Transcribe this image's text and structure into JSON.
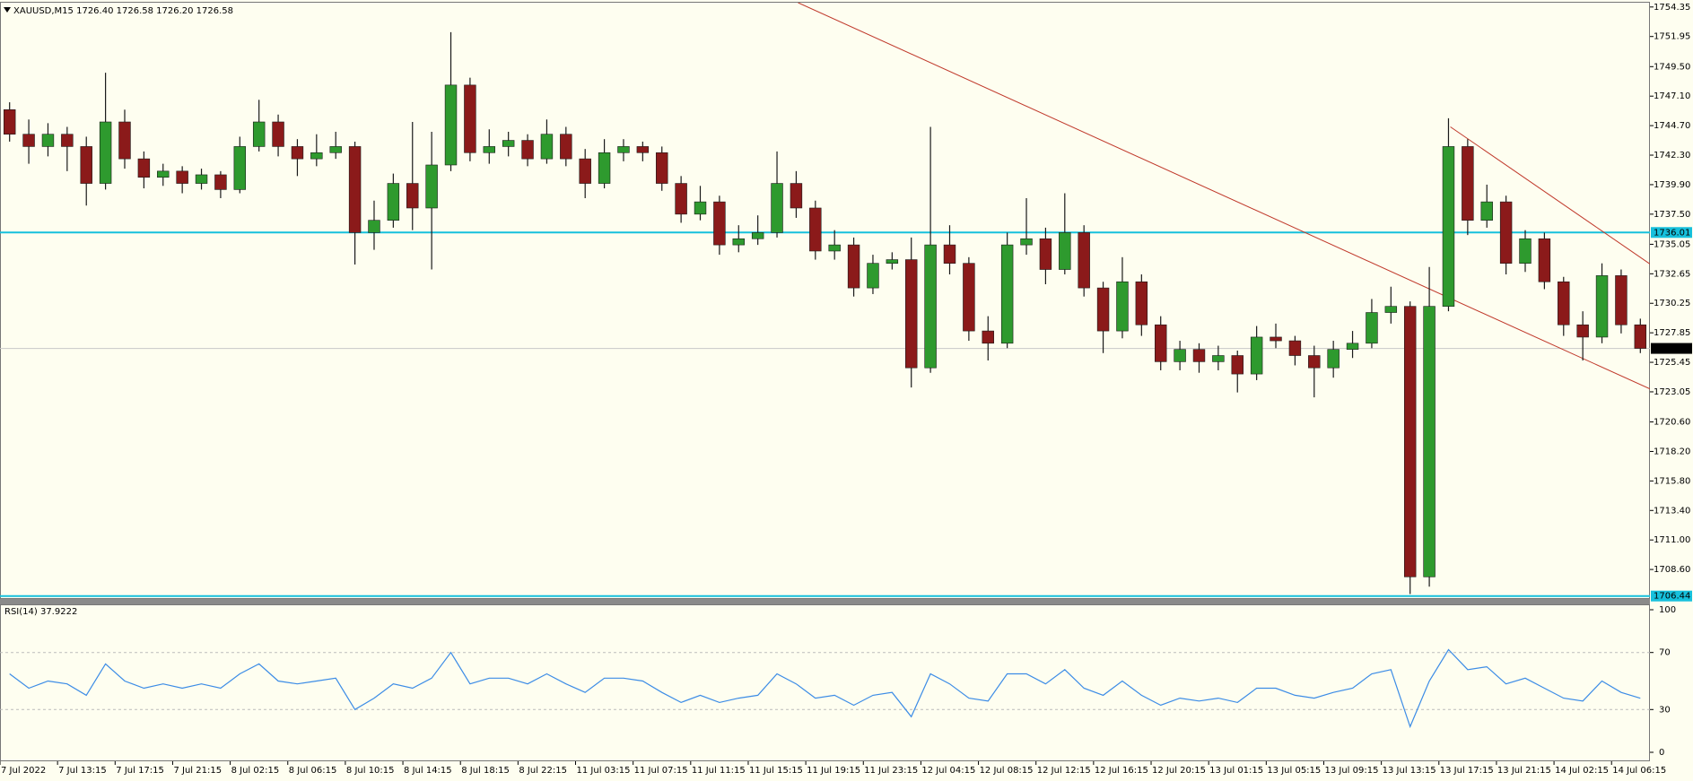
{
  "chart_data": [
    {
      "type": "candlestick",
      "title": "XAUUSD,M15  1726.40 1726.58 1726.20 1726.58",
      "up_color": "#2e9a2e",
      "down_color": "#8b1a1a",
      "wick_color": "#1a1a1a",
      "xlim": [
        0,
        86
      ],
      "ylim": [
        1706.2,
        1754.7
      ],
      "open": [
        1746.0,
        1744.0,
        1743.0,
        1744.0,
        1743.0,
        1740.0,
        1745.0,
        1742.0,
        1740.5,
        1741.0,
        1740.0,
        1740.7,
        1739.5,
        1743.0,
        1745.0,
        1743.0,
        1742.0,
        1742.5,
        1743.0,
        1736.0,
        1737.0,
        1740.0,
        1738.0,
        1741.5,
        1748.0,
        1742.5,
        1743.0,
        1743.5,
        1742.0,
        1744.0,
        1742.0,
        1740.0,
        1742.5,
        1743.0,
        1742.5,
        1740.0,
        1737.5,
        1738.5,
        1735.0,
        1735.5,
        1736.0,
        1740.0,
        1738.0,
        1734.5,
        1735.0,
        1731.5,
        1733.5,
        1733.8,
        1725.0,
        1735.0,
        1733.5,
        1728.0,
        1727.0,
        1735.0,
        1735.5,
        1733.0,
        1736.0,
        1731.5,
        1728.0,
        1732.0,
        1728.5,
        1725.5,
        1726.5,
        1725.5,
        1726.0,
        1724.5,
        1727.5,
        1727.2,
        1726.0,
        1725.0,
        1726.5,
        1727.0,
        1729.5,
        1730.0,
        1708.0,
        1730.0,
        1743.0,
        1737.0,
        1738.5,
        1733.5,
        1735.5,
        1732.0,
        1728.5,
        1727.5,
        1732.5,
        1728.5
      ],
      "high": [
        1746.6,
        1745.2,
        1744.9,
        1744.6,
        1743.8,
        1749.0,
        1746.0,
        1742.6,
        1741.6,
        1741.4,
        1741.2,
        1741.0,
        1743.8,
        1746.8,
        1745.6,
        1743.6,
        1744.0,
        1744.2,
        1743.4,
        1738.6,
        1740.8,
        1745.0,
        1744.2,
        1752.3,
        1748.6,
        1744.4,
        1744.2,
        1744.0,
        1745.2,
        1744.6,
        1742.8,
        1743.6,
        1743.6,
        1743.4,
        1743.0,
        1740.6,
        1739.8,
        1739.0,
        1736.6,
        1737.4,
        1742.6,
        1741.0,
        1738.6,
        1736.2,
        1735.6,
        1734.2,
        1734.4,
        1735.6,
        1744.6,
        1736.6,
        1734.0,
        1729.2,
        1736.0,
        1738.8,
        1736.4,
        1739.2,
        1736.6,
        1732.0,
        1734.0,
        1732.6,
        1729.2,
        1727.2,
        1727.0,
        1726.8,
        1726.4,
        1728.4,
        1728.6,
        1727.6,
        1726.8,
        1727.2,
        1728.0,
        1730.6,
        1731.6,
        1730.4,
        1733.2,
        1745.3,
        1743.6,
        1739.9,
        1739.0,
        1736.2,
        1736.0,
        1732.4,
        1729.6,
        1733.5,
        1733.0,
        1729.0
      ],
      "low": [
        1743.4,
        1741.6,
        1742.2,
        1741.0,
        1738.2,
        1739.5,
        1741.2,
        1739.6,
        1739.8,
        1739.2,
        1739.5,
        1738.8,
        1739.2,
        1742.6,
        1742.2,
        1740.6,
        1741.4,
        1742.0,
        1733.4,
        1734.6,
        1736.4,
        1736.2,
        1733.0,
        1741.0,
        1741.8,
        1741.6,
        1742.2,
        1741.4,
        1741.6,
        1741.4,
        1738.8,
        1739.6,
        1741.8,
        1741.8,
        1739.4,
        1736.8,
        1737.0,
        1734.2,
        1734.4,
        1735.0,
        1735.6,
        1737.2,
        1733.8,
        1733.8,
        1730.8,
        1731.0,
        1733.0,
        1723.4,
        1724.6,
        1732.6,
        1727.2,
        1725.6,
        1726.6,
        1734.2,
        1731.8,
        1732.6,
        1730.8,
        1726.2,
        1727.4,
        1727.6,
        1724.8,
        1724.8,
        1724.6,
        1724.8,
        1723.0,
        1724.0,
        1726.6,
        1725.2,
        1722.6,
        1724.2,
        1725.8,
        1726.6,
        1728.6,
        1706.6,
        1707.2,
        1729.6,
        1735.8,
        1736.4,
        1732.6,
        1732.8,
        1731.4,
        1727.6,
        1725.6,
        1727.0,
        1727.8,
        1726.2
      ],
      "close": [
        1744.0,
        1743.0,
        1744.0,
        1743.0,
        1740.0,
        1745.0,
        1742.0,
        1740.5,
        1741.0,
        1740.0,
        1740.7,
        1739.5,
        1743.0,
        1745.0,
        1743.0,
        1742.0,
        1742.5,
        1743.0,
        1736.0,
        1737.0,
        1740.0,
        1738.0,
        1741.5,
        1748.0,
        1742.5,
        1743.0,
        1743.5,
        1742.0,
        1744.0,
        1742.0,
        1740.0,
        1742.5,
        1743.0,
        1742.5,
        1740.0,
        1737.5,
        1738.5,
        1735.0,
        1735.5,
        1736.0,
        1740.0,
        1738.0,
        1734.5,
        1735.0,
        1731.5,
        1733.5,
        1733.8,
        1725.0,
        1735.0,
        1733.5,
        1728.0,
        1727.0,
        1735.0,
        1735.5,
        1733.0,
        1736.0,
        1731.5,
        1728.0,
        1732.0,
        1728.5,
        1725.5,
        1726.5,
        1725.5,
        1726.0,
        1724.5,
        1727.5,
        1727.2,
        1726.0,
        1725.0,
        1726.5,
        1727.0,
        1729.5,
        1730.0,
        1708.0,
        1730.0,
        1743.0,
        1737.0,
        1738.5,
        1733.5,
        1735.5,
        1732.0,
        1728.5,
        1727.5,
        1732.5,
        1728.5,
        1726.58
      ],
      "yticks": [
        1754.35,
        1751.95,
        {
          "value": 1749.5,
          "label": "1749.50"
        },
        {
          "value": 1747.1,
          "label": "1747.10"
        },
        {
          "value": 1744.7,
          "label": "1744.70"
        },
        {
          "value": 1742.3,
          "label": "1742.30"
        },
        {
          "value": 1739.9,
          "label": "1739.90"
        },
        {
          "value": 1737.5,
          "label": "1737.50"
        },
        1735.05,
        1732.65,
        1730.25,
        1727.85,
        1725.45,
        1723.05,
        {
          "value": 1720.6,
          "label": "1720.60"
        },
        {
          "value": 1718.2,
          "label": "1718.20"
        },
        {
          "value": 1715.8,
          "label": "1715.80"
        },
        {
          "value": 1713.4,
          "label": "1713.40"
        },
        {
          "value": 1711,
          "label": "1711.00"
        },
        {
          "value": 1708.6,
          "label": "1708.60"
        }
      ],
      "xticks": [
        {
          "value": 0,
          "label": "7 Jul 2022"
        },
        {
          "value": 3,
          "label": "7 Jul 13:15"
        },
        {
          "value": 6,
          "label": "7 Jul 17:15"
        },
        {
          "value": 9,
          "label": "7 Jul 21:15"
        },
        {
          "value": 12,
          "label": "8 Jul 02:15"
        },
        {
          "value": 15,
          "label": "8 Jul 06:15"
        },
        {
          "value": 18,
          "label": "8 Jul 10:15"
        },
        {
          "value": 21,
          "label": "8 Jul 14:15"
        },
        {
          "value": 24,
          "label": "8 Jul 18:15"
        },
        {
          "value": 27,
          "label": "8 Jul 22:15"
        },
        {
          "value": 30,
          "label": "11 Jul 03:15"
        },
        {
          "value": 33,
          "label": "11 Jul 07:15"
        },
        {
          "value": 36,
          "label": "11 Jul 11:15"
        },
        {
          "value": 39,
          "label": "11 Jul 15:15"
        },
        {
          "value": 42,
          "label": "11 Jul 19:15"
        },
        {
          "value": 45,
          "label": "11 Jul 23:15"
        },
        {
          "value": 48,
          "label": "12 Jul 04:15"
        },
        {
          "value": 51,
          "label": "12 Jul 08:15"
        },
        {
          "value": 54,
          "label": "12 Jul 12:15"
        },
        {
          "value": 57,
          "label": "12 Jul 16:15"
        },
        {
          "value": 60,
          "label": "12 Jul 20:15"
        },
        {
          "value": 63,
          "label": "13 Jul 01:15"
        },
        {
          "value": 66,
          "label": "13 Jul 05:15"
        },
        {
          "value": 69,
          "label": "13 Jul 09:15"
        },
        {
          "value": 72,
          "label": "13 Jul 13:15"
        },
        {
          "value": 75,
          "label": "13 Jul 17:15"
        },
        {
          "value": 78,
          "label": "13 Jul 21:15"
        },
        {
          "value": 81,
          "label": "14 Jul 02:15"
        },
        {
          "value": 84,
          "label": "14 Jul 06:15"
        }
      ],
      "hlines": [
        {
          "value": 1736.01,
          "color": "#16c0dc"
        },
        {
          "value": 1706.44,
          "color": "#16c0dc"
        },
        {
          "value": 1726.58,
          "color": "#000000"
        }
      ],
      "trendlines": [
        {
          "x": [
            41.6,
            88.1
          ],
          "y": [
            1754.7,
            1721.8
          ],
          "color": "#c0392b"
        },
        {
          "x": [
            75.6,
            88.1
          ],
          "y": [
            1744.6,
            1731.2
          ],
          "color": "#c0392b"
        }
      ]
    },
    {
      "type": "line",
      "title": "RSI(14) 37.9222",
      "color": "#3c8ce6",
      "ylim": [
        0,
        100
      ],
      "yticks": [
        0,
        30,
        70,
        100
      ],
      "levels": [
        30,
        70
      ],
      "values": [
        55,
        45,
        50,
        48,
        40,
        62,
        50,
        45,
        48,
        45,
        48,
        45,
        55,
        62,
        50,
        48,
        50,
        52,
        30,
        38,
        48,
        45,
        52,
        70,
        48,
        52,
        52,
        48,
        55,
        48,
        42,
        52,
        52,
        50,
        42,
        35,
        40,
        35,
        38,
        40,
        55,
        48,
        38,
        40,
        33,
        40,
        42,
        25,
        55,
        48,
        38,
        36,
        55,
        55,
        48,
        58,
        45,
        40,
        50,
        40,
        33,
        38,
        36,
        38,
        35,
        45,
        45,
        40,
        38,
        42,
        45,
        55,
        58,
        18,
        50,
        72,
        58,
        60,
        48,
        52,
        45,
        38,
        36,
        50,
        42,
        37.92
      ]
    }
  ]
}
